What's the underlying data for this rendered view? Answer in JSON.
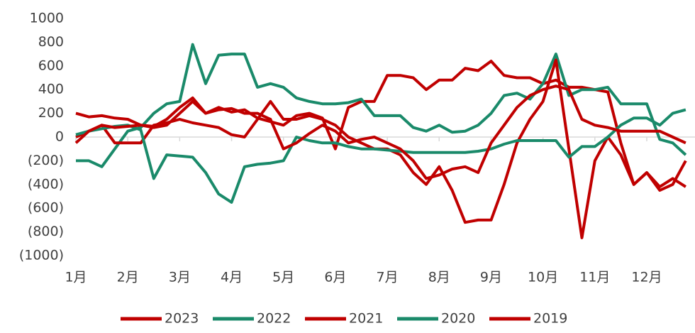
{
  "chart_data": {
    "type": "line",
    "categories": [
      "1月",
      null,
      null,
      null,
      "2月",
      null,
      null,
      null,
      "3月",
      null,
      null,
      null,
      "4月",
      null,
      null,
      null,
      "5月",
      null,
      null,
      null,
      "6月",
      null,
      null,
      null,
      "7月",
      null,
      null,
      null,
      "8月",
      null,
      null,
      null,
      "9月",
      null,
      null,
      null,
      "10月",
      null,
      null,
      null,
      "11月",
      null,
      null,
      null,
      "12月",
      null,
      null,
      null
    ],
    "series": [
      {
        "name": "2023",
        "color": "#c00000",
        "values": [
          200,
          170,
          180,
          160,
          150,
          100,
          80,
          100,
          200,
          300,
          200,
          250,
          210,
          230,
          160,
          130,
          100,
          180,
          200,
          160,
          -100,
          250,
          300,
          300,
          520,
          520,
          500,
          400,
          480,
          480,
          580,
          560,
          640,
          520,
          500,
          500,
          450,
          480,
          420,
          420,
          400,
          380,
          -50,
          -400,
          -300,
          -420,
          -350,
          -420
        ]
      },
      {
        "name": "2022",
        "color": "#1a8a6a",
        "values": [
          -200,
          -200,
          -250,
          -100,
          50,
          80,
          200,
          280,
          300,
          780,
          450,
          690,
          700,
          700,
          420,
          450,
          420,
          330,
          300,
          280,
          280,
          290,
          320,
          180,
          180,
          180,
          80,
          50,
          100,
          40,
          50,
          100,
          200,
          350,
          370,
          320,
          450,
          700,
          350,
          400,
          400,
          420,
          280,
          280,
          280,
          -20,
          -50,
          -150
        ]
      },
      {
        "name": "2021",
        "color": "#c00000",
        "values": [
          0,
          50,
          100,
          -50,
          -50,
          -50,
          100,
          120,
          150,
          120,
          100,
          80,
          20,
          0,
          150,
          300,
          150,
          150,
          180,
          150,
          100,
          0,
          -50,
          -100,
          -100,
          -150,
          -300,
          -400,
          -250,
          -450,
          -720,
          -700,
          -700,
          -400,
          -50,
          150,
          300,
          650,
          -100,
          -850,
          -200,
          0,
          -150,
          -400,
          -300,
          -450,
          -400,
          -200
        ]
      },
      {
        "name": "2020",
        "color": "#1a8a6a",
        "values": [
          20,
          50,
          70,
          90,
          100,
          60,
          -350,
          -150,
          -160,
          -170,
          -300,
          -480,
          -550,
          -250,
          -230,
          -220,
          -200,
          0,
          -30,
          -50,
          -50,
          -80,
          -100,
          -100,
          -110,
          -120,
          -130,
          -130,
          -130,
          -130,
          -130,
          -120,
          -100,
          -60,
          -30,
          -30,
          -30,
          -30,
          -170,
          -80,
          -80,
          0,
          100,
          160,
          160,
          100,
          200,
          230
        ]
      },
      {
        "name": "2019",
        "color": "#c00000",
        "values": [
          -50,
          50,
          100,
          80,
          90,
          100,
          90,
          150,
          250,
          330,
          200,
          230,
          240,
          200,
          200,
          150,
          -100,
          -50,
          30,
          100,
          50,
          -50,
          -20,
          0,
          -50,
          -100,
          -200,
          -350,
          -320,
          -270,
          -250,
          -300,
          -50,
          100,
          250,
          350,
          400,
          430,
          400,
          150,
          100,
          80,
          50,
          50,
          50,
          50,
          0,
          -50
        ]
      }
    ],
    "ylim": [
      -1000,
      1000
    ],
    "yticks": [
      {
        "value": -1000,
        "label": "(1000)"
      },
      {
        "value": -800,
        "label": "(800)"
      },
      {
        "value": -600,
        "label": "(600)"
      },
      {
        "value": -400,
        "label": "(400)"
      },
      {
        "value": -200,
        "label": "(200)"
      },
      0,
      200,
      400,
      600,
      800,
      1000
    ],
    "legend": "bottom"
  }
}
